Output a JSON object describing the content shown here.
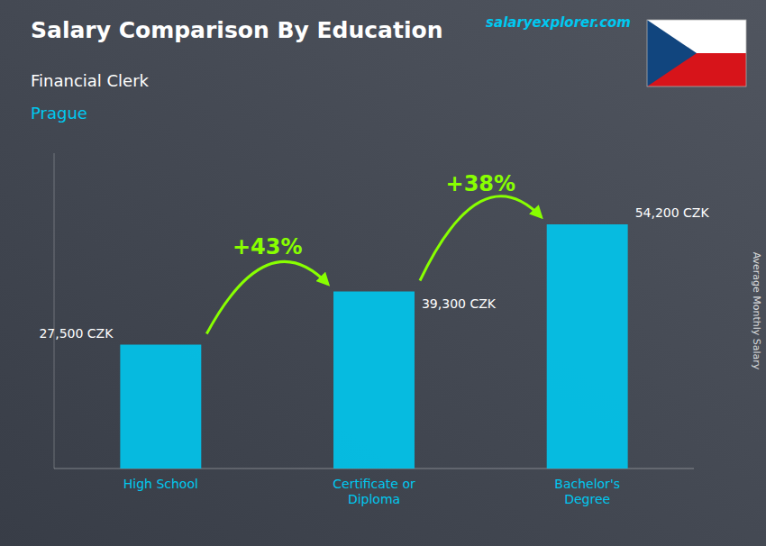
{
  "chart_data": {
    "type": "bar",
    "title": "Salary Comparison By Education",
    "subtitle": [
      "Financial Clerk",
      "Prague"
    ],
    "ylabel": "Average Monthly Salary",
    "source": "salaryexplorer.com",
    "categories": [
      "High School",
      "Certificate or\nDiploma",
      "Bachelor's\nDegree"
    ],
    "values": [
      27500,
      39300,
      54200
    ],
    "value_labels": [
      "27,500 CZK",
      "39,300 CZK",
      "54,200 CZK"
    ],
    "data_labels": true,
    "color": "#00c8f0",
    "ylim": [
      0,
      70000
    ],
    "tick_labels": "x",
    "grid": false,
    "annotations": [
      {
        "text": "+43%",
        "color": "#88ff00"
      },
      {
        "text": "+38%",
        "color": "#88ff00"
      }
    ]
  }
}
